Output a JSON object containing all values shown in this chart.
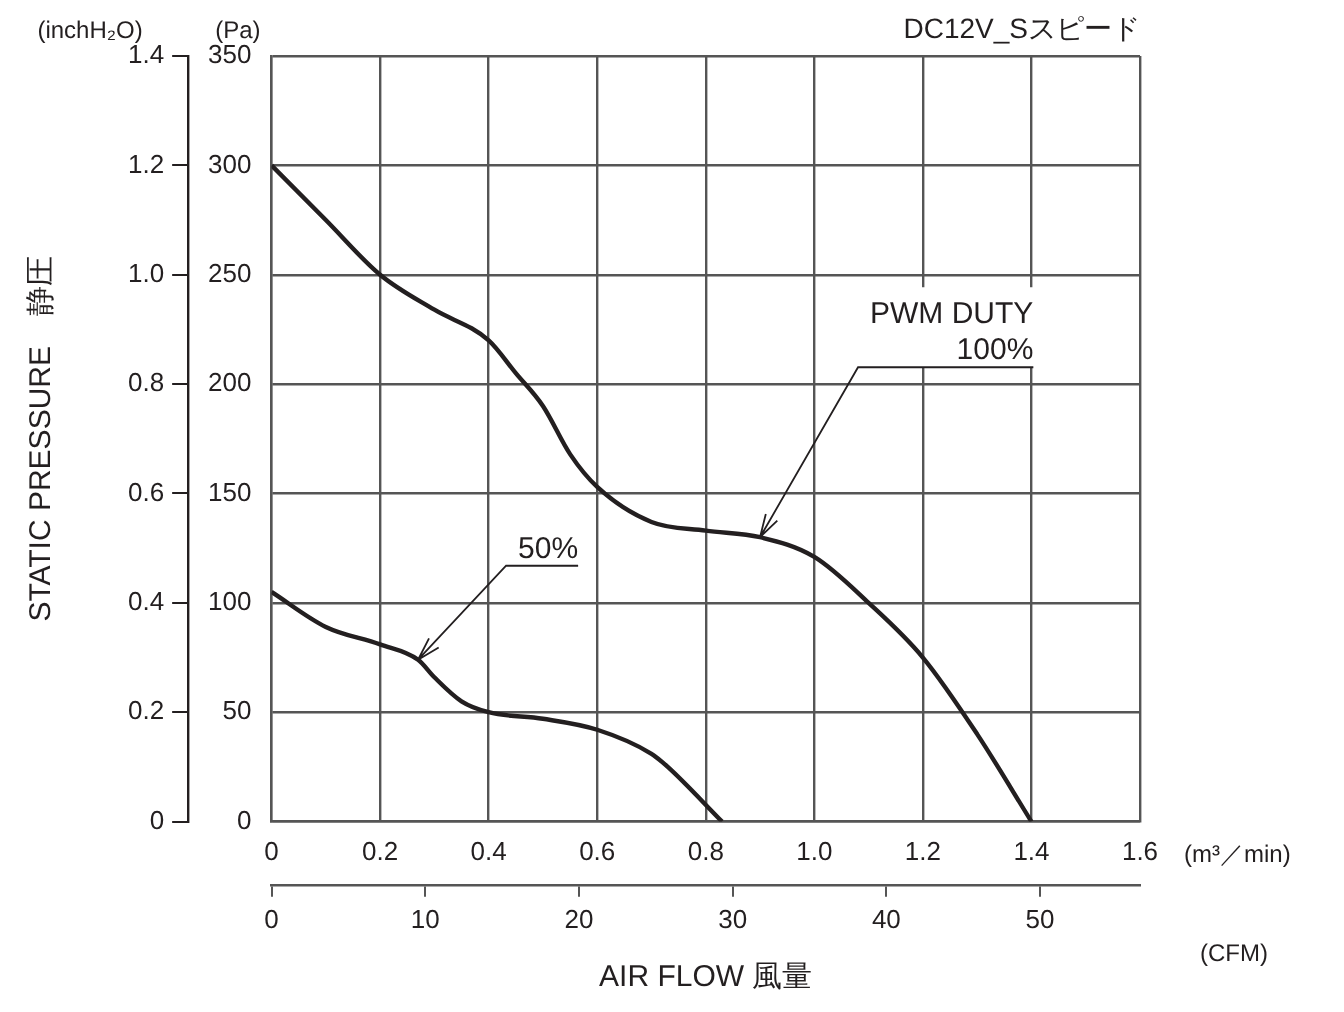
{
  "chart_data": {
    "type": "line",
    "title": "DC12V_Sスピード",
    "xlabel": "AIR FLOW 風量",
    "ylabel": "STATIC PRESSURE　静圧",
    "annotations": [
      "(inchH₂O)",
      "(Pa)",
      "(m³／min)",
      "(CFM)"
    ],
    "series": [
      {
        "name": "PWM DUTY 100%",
        "color": "#231f20",
        "axis": "y2",
        "x": [
          0,
          0.1,
          0.2,
          0.3,
          0.4,
          0.45,
          0.5,
          0.55,
          0.6,
          0.7,
          0.8,
          0.9,
          1.0,
          1.1,
          1.2,
          1.3,
          1.4
        ],
        "values": [
          300,
          275,
          250,
          234,
          220,
          205,
          190,
          168,
          153,
          137,
          133,
          130,
          121,
          100,
          75,
          40,
          0
        ]
      },
      {
        "name": "50%",
        "color": "#231f20",
        "axis": "y2",
        "x": [
          0,
          0.1,
          0.2,
          0.27,
          0.3,
          0.35,
          0.4,
          0.5,
          0.6,
          0.7,
          0.73,
          0.83
        ],
        "values": [
          105,
          89,
          81,
          74,
          66,
          55,
          50,
          47,
          42,
          31,
          25,
          0
        ]
      }
    ],
    "xlim": [
      0,
      1.6
    ],
    "xticks": [
      0,
      0.2,
      0.4,
      0.6,
      0.8,
      {
        "value": 1,
        "label": "1.0"
      },
      1.2,
      1.4,
      1.6
    ],
    "y2lim": [
      0,
      350
    ],
    "y2ticks": [
      0,
      50,
      100,
      150,
      200,
      250,
      300,
      350
    ],
    "ylim": [
      0,
      1.4
    ],
    "yticks": [
      0,
      0.2,
      0.4,
      0.6,
      0.8,
      {
        "value": 1,
        "label": "1.0"
      },
      1.2,
      1.4
    ],
    "x2lim": [
      0,
      56.5
    ],
    "x2ticks": [
      0,
      10,
      20,
      30,
      40,
      50
    ],
    "grid": true,
    "legend": false,
    "marker": "none",
    "line_style": "solid"
  }
}
